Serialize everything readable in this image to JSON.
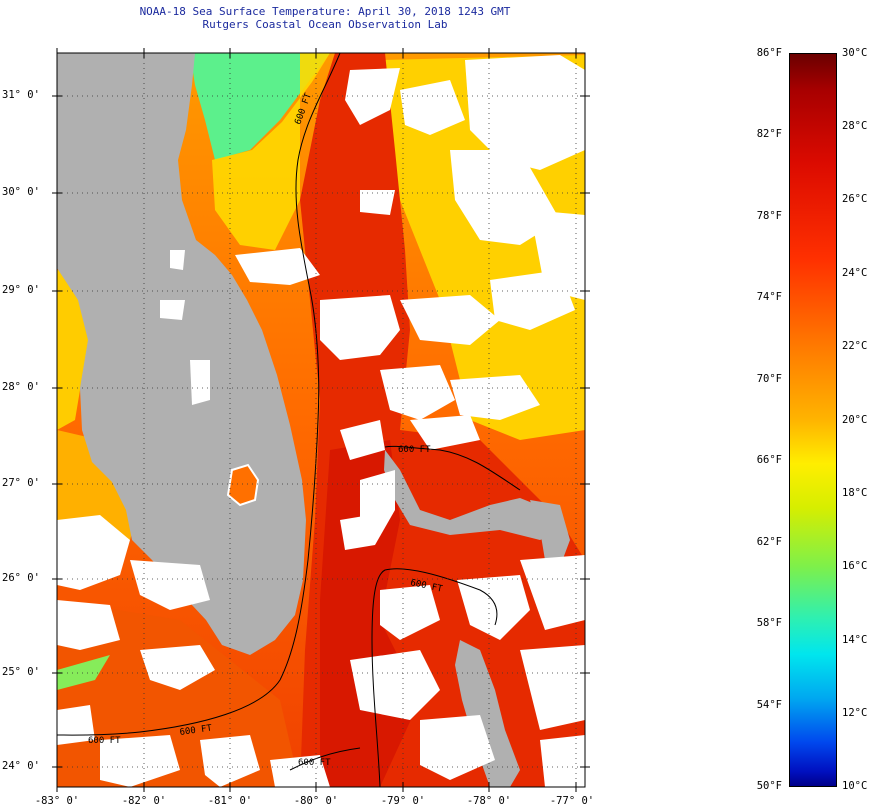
{
  "title": {
    "line1": "NOAA-18 Sea Surface Temperature:  April 30, 2018 1243 GMT",
    "line2": "Rutgers Coastal Ocean Observation Lab"
  },
  "map": {
    "latitude_labels": [
      "31° 0'",
      "30° 0'",
      "29° 0'",
      "28° 0'",
      "27° 0'",
      "26° 0'",
      "25° 0'",
      "24° 0'"
    ],
    "longitude_labels": [
      "-83° 0'",
      "-82° 0'",
      "-81° 0'",
      "-80° 0'",
      "-79° 0'",
      "-78° 0'",
      "-77° 0'"
    ],
    "contour_labels": [
      "600 FT",
      "600 FT",
      "600 FT",
      "600 FT",
      "600 FT",
      "600 FT"
    ],
    "colors": {
      "land": "#b0b0b0",
      "cloud": "#ffffff",
      "gulf_stream": "#e62a00",
      "warm_water": "#ff6400",
      "shelf_water": "#ff9c00",
      "cool_water": "#ffd400",
      "cold_shelf": "#5cf08c"
    }
  },
  "colorbar": {
    "fahrenheit_labels": [
      "86°F",
      "82°F",
      "78°F",
      "74°F",
      "70°F",
      "66°F",
      "62°F",
      "58°F",
      "54°F",
      "50°F"
    ],
    "celsius_labels": [
      "30°C",
      "28°C",
      "26°C",
      "24°C",
      "22°C",
      "20°C",
      "18°C",
      "16°C",
      "14°C",
      "12°C",
      "10°C"
    ]
  }
}
